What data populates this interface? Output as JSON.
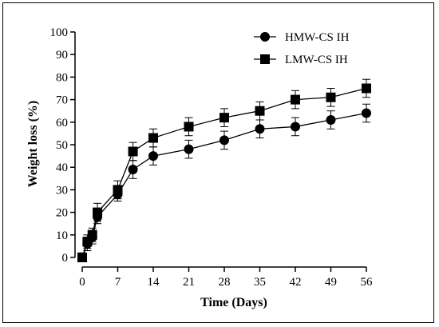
{
  "chart_data": {
    "type": "line",
    "xlabel": "Time (Days)",
    "ylabel": "Weight loss (%)",
    "xlim": [
      0,
      56
    ],
    "ylim": [
      0,
      100
    ],
    "x_ticks": [
      0,
      7,
      14,
      21,
      28,
      35,
      42,
      49,
      56
    ],
    "y_ticks": [
      0,
      10,
      20,
      30,
      40,
      50,
      60,
      70,
      80,
      90,
      100
    ],
    "grid": false,
    "legend_position": "top-right",
    "x": [
      0,
      1,
      2,
      3,
      7,
      10,
      14,
      21,
      28,
      35,
      42,
      49,
      56
    ],
    "series": [
      {
        "name": "HMW-CS IH",
        "marker": "circle",
        "color": "#000000",
        "values": [
          0,
          6,
          9,
          18,
          28,
          39,
          45,
          48,
          52,
          57,
          58,
          61,
          64
        ],
        "errors": [
          2,
          3,
          3,
          3,
          3,
          4,
          4,
          4,
          4,
          4,
          4,
          4,
          4
        ]
      },
      {
        "name": "LMW-CS IH",
        "marker": "square",
        "color": "#000000",
        "values": [
          0,
          7,
          10,
          20,
          30,
          47,
          53,
          58,
          62,
          65,
          70,
          71,
          75
        ],
        "errors": [
          2,
          3,
          3,
          4,
          4,
          4,
          4,
          4,
          4,
          4,
          4,
          4,
          4
        ]
      }
    ]
  }
}
